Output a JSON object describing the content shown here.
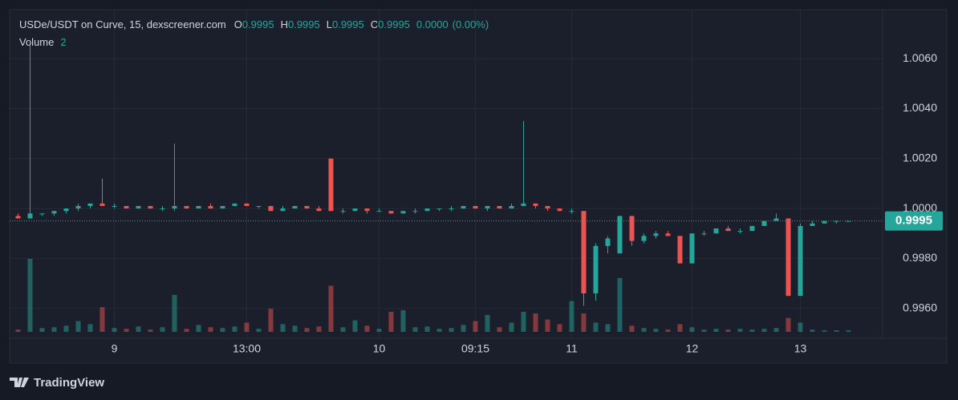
{
  "chart_data": {
    "type": "candlestick",
    "title": "USDe/USDT on Curve, 15, dexscreener.com",
    "legend": {
      "o_label": "O",
      "o": 0.9995,
      "h_label": "H",
      "h": 0.9995,
      "l_label": "L",
      "l": 0.9995,
      "c_label": "C",
      "c": 0.9995,
      "change": {
        "value": 0,
        "label": "0.0000"
      },
      "change_pct": {
        "value": 0,
        "label": "(0.00%)"
      }
    },
    "volume_label": "Volume",
    "volume_last": 2,
    "up_color": "#26a69a",
    "down_color": "#ef5350",
    "last_price": 0.9995,
    "categories": [
      null,
      null,
      null,
      null,
      null,
      null,
      null,
      null,
      "9",
      null,
      null,
      null,
      null,
      null,
      null,
      null,
      null,
      null,
      null,
      "13:00",
      null,
      null,
      null,
      null,
      null,
      null,
      null,
      null,
      null,
      null,
      "10",
      null,
      null,
      null,
      null,
      null,
      null,
      null,
      "09:15",
      null,
      null,
      null,
      null,
      null,
      null,
      null,
      "11",
      null,
      null,
      null,
      null,
      null,
      null,
      null,
      null,
      null,
      "12",
      null,
      null,
      null,
      null,
      null,
      null,
      null,
      null,
      "13",
      null,
      null,
      null,
      null
    ],
    "open": [
      0.9997,
      0.9996,
      0.9998,
      0.9998,
      0.9999,
      1.0,
      1.0001,
      1.0002,
      1.0001,
      1.0001,
      1.0,
      1.0001,
      1.0,
      1.0,
      1.0001,
      1.0,
      1.0001,
      1.0,
      1.0001,
      1.0002,
      1.0001,
      1.0001,
      0.9999,
      1.0,
      1.0001,
      1.0,
      1.002,
      0.9999,
      0.9999,
      1.0,
      0.9999,
      0.9999,
      0.9998,
      0.9999,
      0.9999,
      1.0,
      1.0,
      1.0,
      1.0001,
      1.0,
      1.0001,
      1.0,
      1.0001,
      1.0002,
      1.0001,
      1.0,
      0.9999,
      0.9999,
      0.9966,
      0.9985,
      0.9982,
      0.9997,
      0.9987,
      0.9989,
      0.999,
      0.9989,
      0.9978,
      0.999,
      0.999,
      0.9992,
      0.9991,
      0.9991,
      0.9993,
      0.9995,
      0.9996,
      0.9965,
      0.9993,
      0.9994,
      0.9995,
      0.9995
    ],
    "high": [
      0.9998,
      1.0066,
      0.9998,
      0.9999,
      1.0,
      1.0002,
      1.0002,
      1.0012,
      1.0002,
      1.0001,
      1.0001,
      1.0001,
      1.0001,
      1.0026,
      1.0001,
      1.0001,
      1.0002,
      1.0001,
      1.0002,
      1.0002,
      1.0001,
      1.0001,
      1.0001,
      1.0001,
      1.0001,
      1.0001,
      1.002,
      1.0,
      1.0,
      1.0,
      1.0,
      0.9999,
      0.9999,
      1.0,
      1.0,
      1.0,
      1.0001,
      1.0001,
      1.0001,
      1.0001,
      1.0001,
      1.0002,
      1.0035,
      1.0002,
      1.0001,
      1.0,
      1.0,
      0.9999,
      0.9986,
      0.9989,
      0.9997,
      0.9997,
      0.999,
      0.9991,
      0.9991,
      0.9989,
      0.999,
      0.9991,
      0.9992,
      0.9993,
      0.9992,
      0.9993,
      0.9995,
      0.9998,
      0.9996,
      0.9994,
      0.9995,
      0.9995,
      0.9995,
      0.9995
    ],
    "low": [
      0.9996,
      0.9996,
      0.9997,
      0.9997,
      0.9998,
      0.9999,
      1.0,
      1.0001,
      1.0,
      1.0,
      1.0,
      1.0,
      0.9999,
      0.9999,
      1.0,
      1.0,
      1.0,
      1.0,
      1.0001,
      1.0001,
      1.0,
      0.9999,
      0.9999,
      1.0,
      1.0,
      0.9999,
      0.9999,
      0.9998,
      0.9999,
      0.9998,
      0.9999,
      0.9998,
      0.9998,
      0.9998,
      0.9999,
      0.9999,
      0.9999,
      1.0,
      1.0,
      0.9999,
      1.0,
      1.0,
      1.0001,
      1.0,
      0.9999,
      0.9999,
      0.9998,
      0.9961,
      0.9963,
      0.9982,
      0.9982,
      0.9985,
      0.9986,
      0.9988,
      0.9989,
      0.9978,
      0.9978,
      0.9989,
      0.999,
      0.9991,
      0.999,
      0.9991,
      0.9993,
      0.9995,
      0.9965,
      0.9965,
      0.9993,
      0.9994,
      0.9994,
      0.9995
    ],
    "close": [
      0.9996,
      0.9998,
      0.9998,
      0.9999,
      1.0,
      1.0001,
      1.0002,
      1.0001,
      1.0001,
      1.0,
      1.0001,
      1.0,
      1.0,
      1.0001,
      1.0,
      1.0001,
      1.0,
      1.0001,
      1.0002,
      1.0001,
      1.0001,
      0.9999,
      1.0,
      1.0001,
      1.0,
      0.9999,
      0.9999,
      0.9999,
      1.0,
      0.9999,
      0.9999,
      0.9998,
      0.9999,
      0.9999,
      1.0,
      1.0,
      1.0,
      1.0001,
      1.0,
      1.0001,
      1.0,
      1.0001,
      1.0002,
      1.0001,
      1.0,
      0.9999,
      0.9999,
      0.9966,
      0.9985,
      0.9988,
      0.9997,
      0.9987,
      0.9989,
      0.999,
      0.9989,
      0.9978,
      0.999,
      0.999,
      0.9992,
      0.9991,
      0.9991,
      0.9993,
      0.9995,
      0.9996,
      0.9965,
      0.9993,
      0.9994,
      0.9995,
      0.9995,
      0.9995
    ],
    "volume": [
      3,
      95,
      5,
      6,
      8,
      14,
      10,
      32,
      5,
      4,
      7,
      3,
      6,
      48,
      4,
      9,
      6,
      5,
      7,
      12,
      4,
      30,
      10,
      8,
      5,
      7,
      60,
      6,
      15,
      8,
      4,
      26,
      28,
      6,
      7,
      4,
      5,
      9,
      14,
      22,
      6,
      12,
      26,
      24,
      16,
      10,
      40,
      24,
      12,
      10,
      70,
      8,
      5,
      4,
      3,
      10,
      6,
      3,
      4,
      3,
      4,
      3,
      4,
      5,
      18,
      12,
      3,
      2,
      2,
      2
    ],
    "vlim": [
      0,
      100
    ],
    "ylim": [
      0.9948,
      1.008
    ],
    "yticks": [
      {
        "value": 0.996,
        "label": "0.9960"
      },
      {
        "value": 0.998,
        "label": "0.9980"
      },
      {
        "value": 1.0,
        "label": "1.0000"
      },
      {
        "value": 1.002,
        "label": "1.0020"
      },
      {
        "value": 1.004,
        "label": "1.0040"
      },
      {
        "value": 1.006,
        "label": "1.0060"
      }
    ],
    "grid": true
  },
  "branding": "TradingView"
}
